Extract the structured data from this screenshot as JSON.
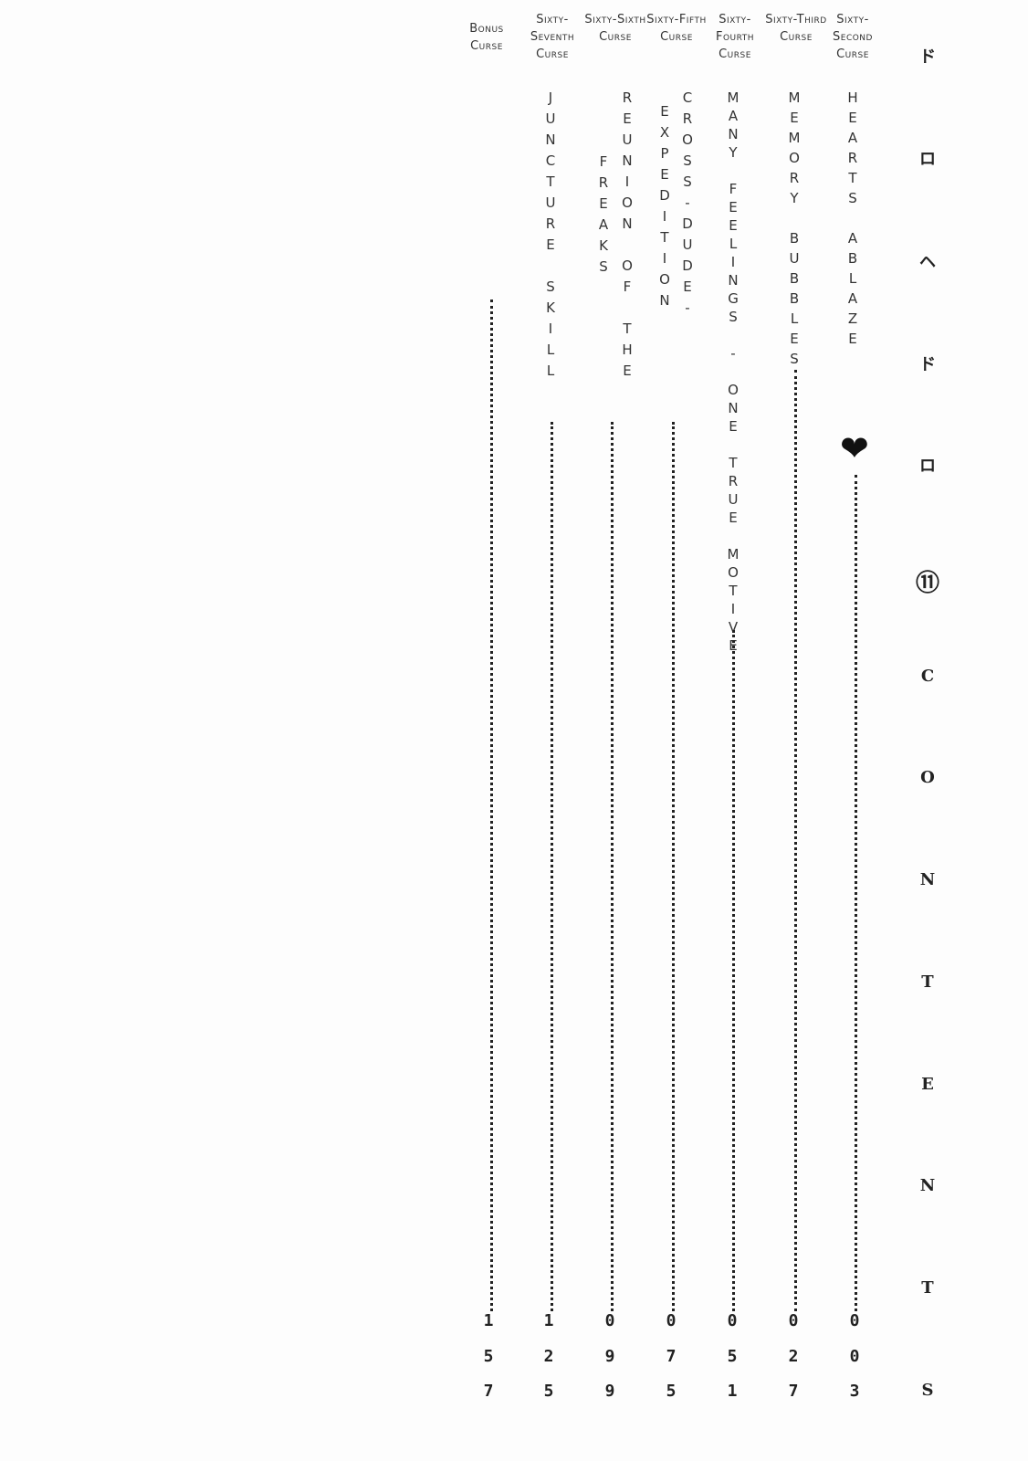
{
  "chapters": [
    {
      "header": "Bonus Curse",
      "title": [],
      "page": "157"
    },
    {
      "header": "Sixty-Seventh Curse",
      "title": [
        "JUNCTURE SKILL"
      ],
      "page": "125"
    },
    {
      "header": "Sixty-Sixth Curse",
      "title": [
        "REUNION OF THE",
        "FREAKS"
      ],
      "page": "099"
    },
    {
      "header": "Sixty-Fifth Curse",
      "title": [
        "CROSS-DUDE-",
        "EXPEDITION"
      ],
      "page": "075"
    },
    {
      "header": "Sixty-Fourth Curse",
      "title": [
        "MANY FEELINGS - ONE TRUE MOTIVE"
      ],
      "page": "051"
    },
    {
      "header": "Sixty-Third Curse",
      "title": [
        "MEMORY BUBBLES"
      ],
      "page": "027"
    },
    {
      "header": "Sixty-Second Curse",
      "title": [
        "HEARTS ABLAZE"
      ],
      "page": "003"
    }
  ],
  "side_title": [
    "ド",
    "ロ",
    "ヘ",
    "ド",
    "ロ",
    "⑪",
    "C",
    "O",
    "N",
    "T",
    "E",
    "N",
    "T",
    "S"
  ],
  "heart_icon": "heart"
}
